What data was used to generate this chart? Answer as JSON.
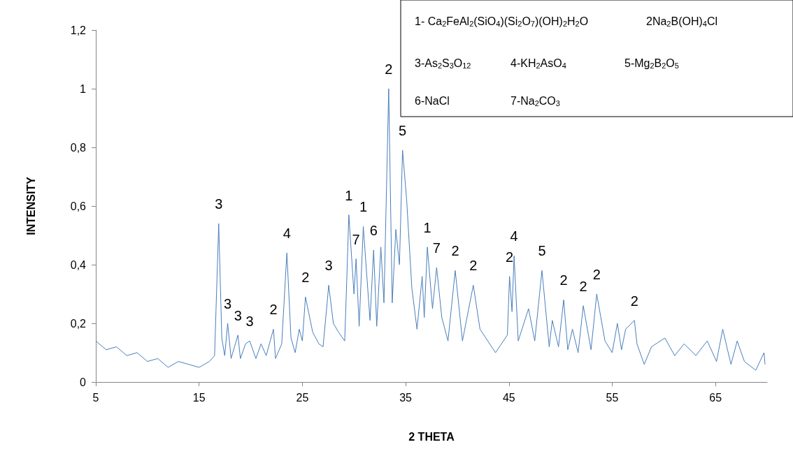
{
  "chart_data": {
    "type": "line",
    "xlabel": "2 THETA",
    "ylabel": "INTENSITY",
    "xlim": [
      5,
      70
    ],
    "xticks": [
      5,
      15,
      25,
      35,
      45,
      55,
      65
    ],
    "ylim": [
      0,
      1.2
    ],
    "yticks": [
      0,
      {
        "value": 0.2,
        "label": "0,2"
      },
      {
        "value": 0.4,
        "label": "0,4"
      },
      {
        "value": 0.6,
        "label": "0,6"
      },
      {
        "value": 0.8,
        "label": "0,8"
      },
      1,
      {
        "value": 1.2,
        "label": "1,2"
      }
    ],
    "grid": false,
    "marker": "none",
    "line_style": "solid",
    "series": [
      {
        "color": "#4a7ebb",
        "x": [
          5,
          6,
          7,
          8,
          9,
          10,
          11,
          12,
          13,
          14,
          15,
          16,
          16.5,
          16.9,
          17.2,
          17.48,
          17.77,
          18.1,
          18.76,
          19.0,
          19.5,
          19.9,
          20.5,
          21,
          21.5,
          22.2,
          22.4,
          23.0,
          23.5,
          23.9,
          24.3,
          24.7,
          25.0,
          25.3,
          26.0,
          26.6,
          27.0,
          27.4,
          27.55,
          28.0,
          28.5,
          29.1,
          29.3,
          29.5,
          30.0,
          30.2,
          30.5,
          30.9,
          31.55,
          31.9,
          32.2,
          32.6,
          32.9,
          33.36,
          33.7,
          34.05,
          34.4,
          34.7,
          35.1,
          35.6,
          36.1,
          36.6,
          36.8,
          37.1,
          37.6,
          38.0,
          38.5,
          39.1,
          39.8,
          40.5,
          41.55,
          42.2,
          43.7,
          44.85,
          45.06,
          45.3,
          45.5,
          45.9,
          46.9,
          47.5,
          48.2,
          48.9,
          49.2,
          49.8,
          50.3,
          50.7,
          51.15,
          51.7,
          52.2,
          52.95,
          53.5,
          54.3,
          55.0,
          55.5,
          55.9,
          56.3,
          57.15,
          57.4,
          58.1,
          58.8,
          60.1,
          61.05,
          61.96,
          63.1,
          64.2,
          65.1,
          65.7,
          66.5,
          67.1,
          67.8,
          68.9,
          69.7,
          69.8
        ],
        "values": [
          0.14,
          0.11,
          0.12,
          0.09,
          0.1,
          0.07,
          0.08,
          0.05,
          0.07,
          0.06,
          0.05,
          0.07,
          0.09,
          0.54,
          0.15,
          0.09,
          0.2,
          0.08,
          0.16,
          0.08,
          0.13,
          0.14,
          0.08,
          0.13,
          0.09,
          0.18,
          0.08,
          0.13,
          0.44,
          0.15,
          0.1,
          0.18,
          0.14,
          0.29,
          0.17,
          0.13,
          0.12,
          0.27,
          0.33,
          0.2,
          0.17,
          0.14,
          0.35,
          0.57,
          0.3,
          0.42,
          0.19,
          0.53,
          0.21,
          0.45,
          0.19,
          0.46,
          0.27,
          1.0,
          0.27,
          0.52,
          0.4,
          0.79,
          0.62,
          0.32,
          0.18,
          0.36,
          0.22,
          0.46,
          0.25,
          0.39,
          0.22,
          0.14,
          0.38,
          0.14,
          0.33,
          0.18,
          0.1,
          0.16,
          0.36,
          0.24,
          0.43,
          0.14,
          0.25,
          0.14,
          0.38,
          0.12,
          0.21,
          0.12,
          0.28,
          0.11,
          0.18,
          0.1,
          0.26,
          0.11,
          0.3,
          0.14,
          0.1,
          0.2,
          0.11,
          0.18,
          0.21,
          0.13,
          0.06,
          0.12,
          0.15,
          0.09,
          0.13,
          0.09,
          0.14,
          0.07,
          0.18,
          0.06,
          0.14,
          0.07,
          0.04,
          0.1,
          0.06
        ]
      }
    ],
    "annotations": [
      "1- Ca$_{2}$FeAl$_{2}$(SiO$_{4}$)(Si$_{2}$O$_{7}$)(OH)$_{2}$H$_{2}$O",
      "2Na$_{2}$B(OH)$_{4}$Cl",
      "3-As$_{2}$S$_{3}$O$_{12}$",
      "4-KH$_{2}$AsO$_{4}$",
      "5-Mg$_{2}$B$_{2}$O$_{5}$",
      "6-NaCl",
      "7-Na$_{2}$CO$_{3}$",
      {
        "text": "3",
        "x": 16.9,
        "y": 0.54
      },
      {
        "text": "3",
        "x": 17.77,
        "y": 0.2
      },
      {
        "text": "3",
        "x": 18.76,
        "y": 0.16
      },
      {
        "text": "3",
        "x": 19.9,
        "y": 0.14
      },
      {
        "text": "2",
        "x": 22.2,
        "y": 0.18
      },
      {
        "text": "4",
        "x": 23.5,
        "y": 0.44
      },
      {
        "text": "2",
        "x": 25.3,
        "y": 0.29
      },
      {
        "text": "3",
        "x": 27.55,
        "y": 0.33
      },
      {
        "text": "1",
        "x": 29.5,
        "y": 0.57
      },
      {
        "text": "7",
        "x": 30.2,
        "y": 0.42
      },
      {
        "text": "1",
        "x": 30.9,
        "y": 0.53
      },
      {
        "text": "6",
        "x": 31.9,
        "y": 0.45
      },
      {
        "text": "2",
        "x": 33.36,
        "y": 1.0
      },
      {
        "text": "5",
        "x": 34.7,
        "y": 0.79
      },
      {
        "text": "1",
        "x": 37.1,
        "y": 0.46
      },
      {
        "text": "7",
        "x": 38.0,
        "y": 0.39
      },
      {
        "text": "2",
        "x": 39.8,
        "y": 0.38
      },
      {
        "text": "2",
        "x": 41.55,
        "y": 0.33
      },
      {
        "text": "2",
        "x": 45.06,
        "y": 0.36
      },
      {
        "text": "4",
        "x": 45.5,
        "y": 0.43
      },
      {
        "text": "5",
        "x": 48.2,
        "y": 0.38
      },
      {
        "text": "2",
        "x": 50.3,
        "y": 0.28
      },
      {
        "text": "2",
        "x": 52.2,
        "y": 0.26
      },
      {
        "text": "2",
        "x": 53.5,
        "y": 0.3
      },
      {
        "text": "2",
        "x": 57.15,
        "y": 0.21
      }
    ]
  }
}
